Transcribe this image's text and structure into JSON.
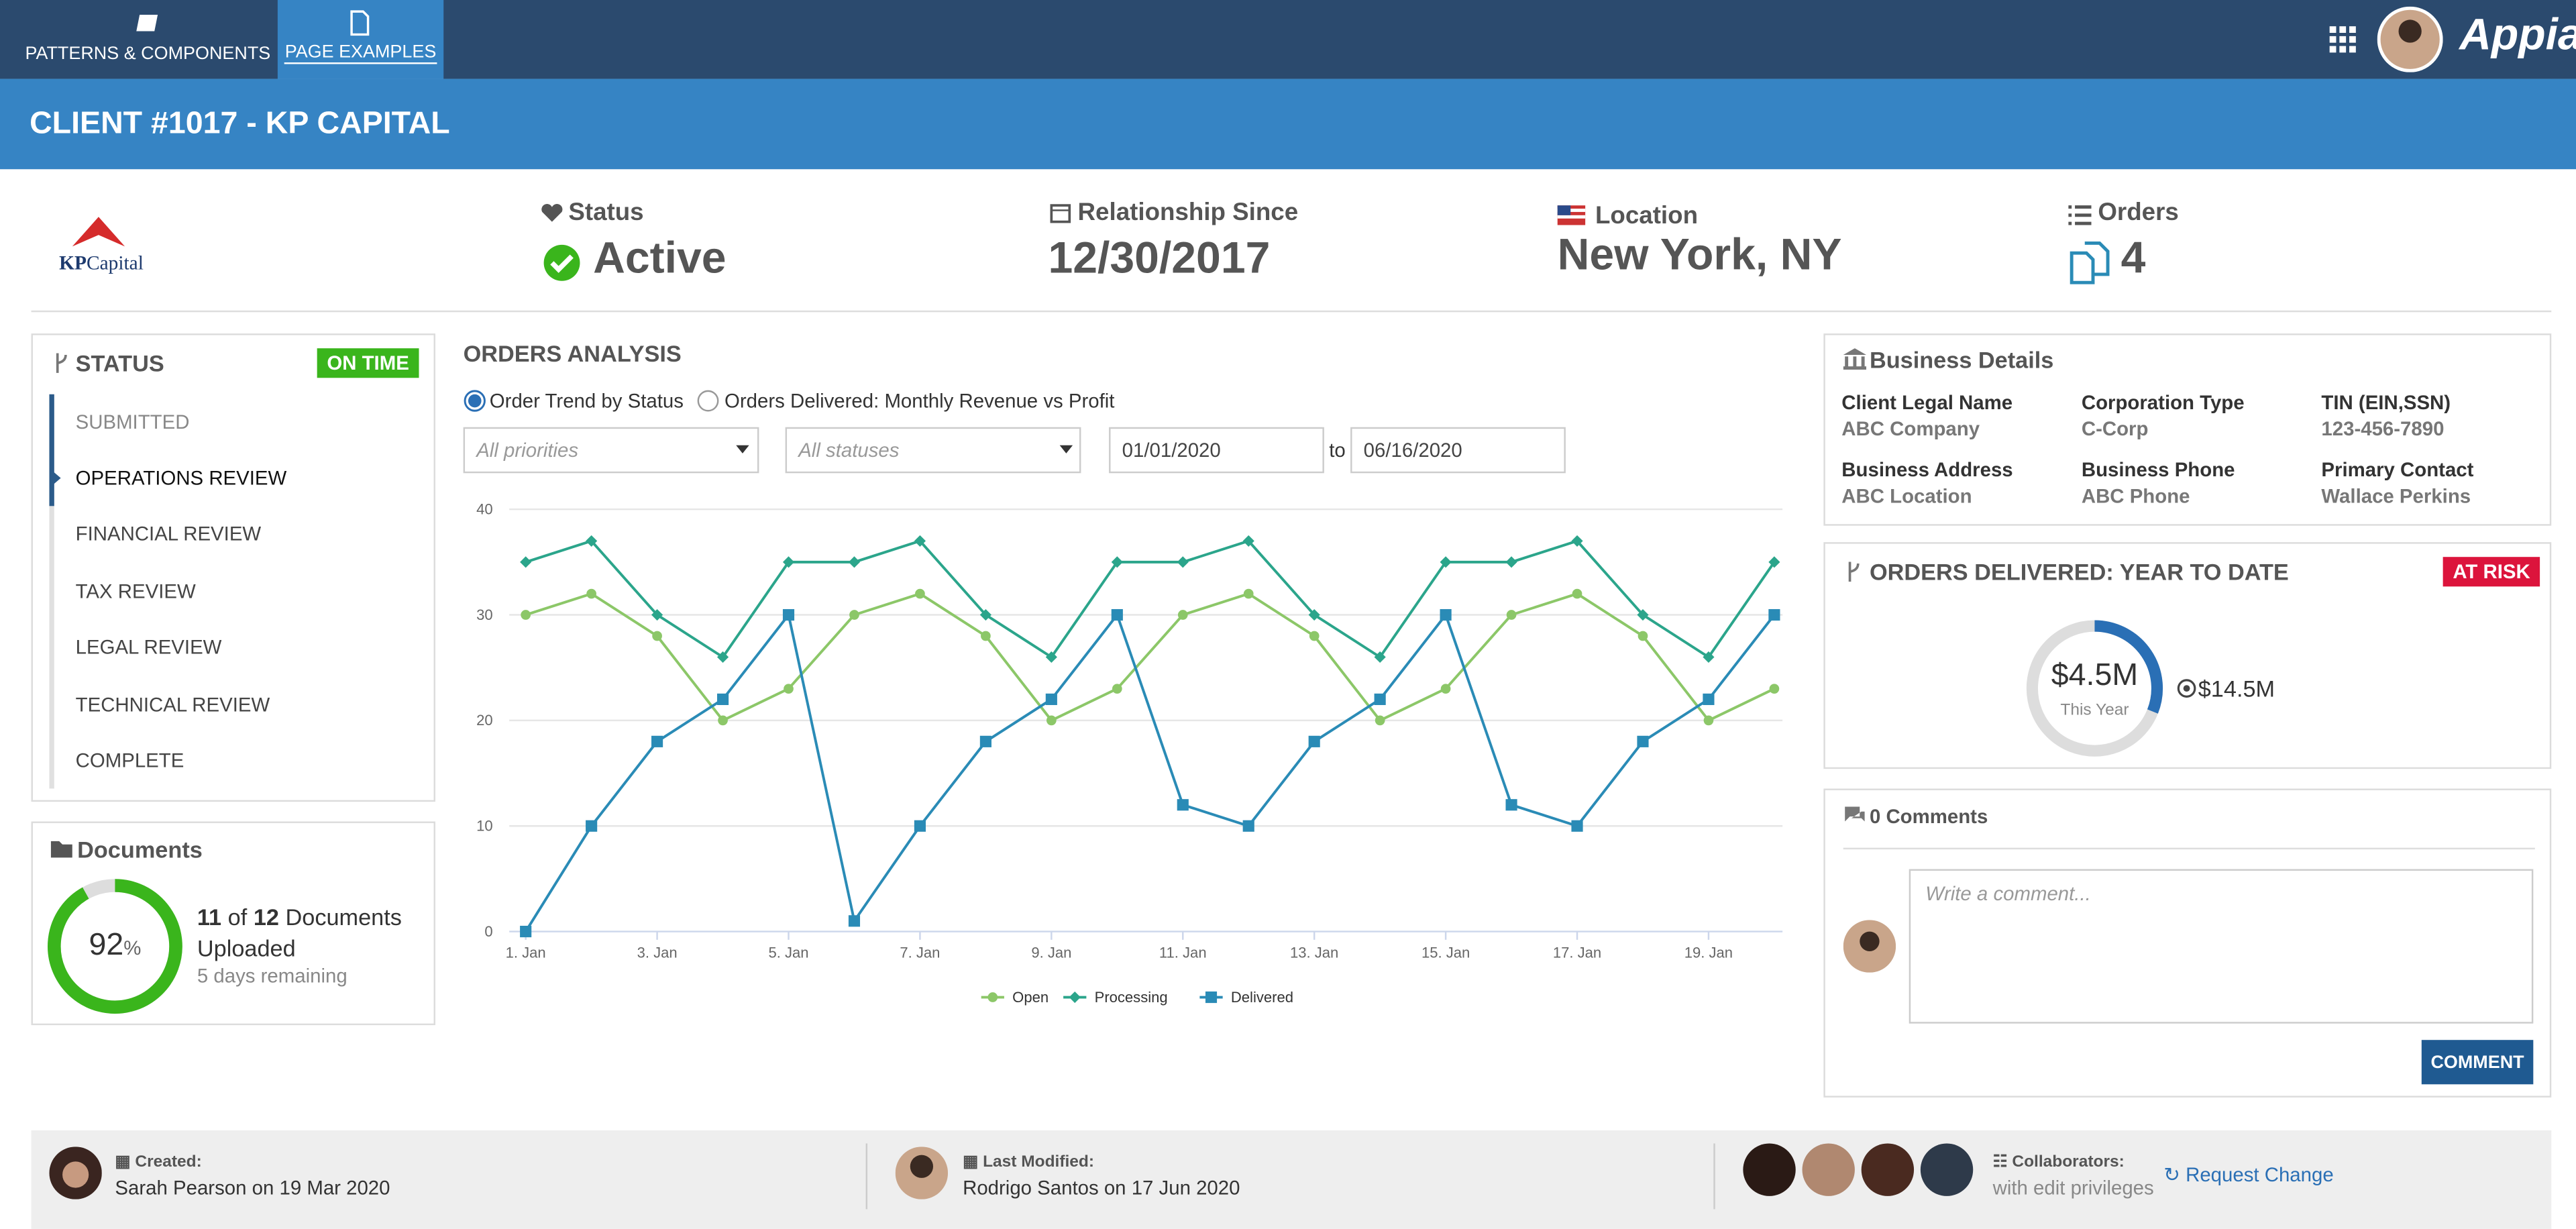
{
  "nav": {
    "tabs": [
      "PATTERNS & COMPONENTS",
      "PAGE EXAMPLES"
    ],
    "brand": "Appian"
  },
  "header": {
    "title": "CLIENT #1017 - KP CAPITAL"
  },
  "summary": {
    "logo_bold": "KP",
    "logo_rest": "Capital",
    "status_label": "Status",
    "status": "Active",
    "relationship_label": "Relationship Since",
    "relationship": "12/30/2017",
    "location_label": "Location",
    "location": "New York, NY",
    "orders_label": "Orders",
    "orders": 4
  },
  "status_panel": {
    "title": "STATUS",
    "badge": "ON TIME",
    "steps": [
      "SUBMITTED",
      "OPERATIONS REVIEW",
      "FINANCIAL REVIEW",
      "TAX REVIEW",
      "LEGAL REVIEW",
      "TECHNICAL REVIEW",
      "COMPLETE"
    ]
  },
  "documents": {
    "title": "Documents",
    "percent": 92,
    "percent_unit": "%",
    "uploaded": 11,
    "of": "of",
    "total": 12,
    "uploaded_text": "Documents Uploaded",
    "remaining": "5 days remaining"
  },
  "orders_analysis": {
    "title": "ORDERS ANALYSIS",
    "options": [
      "Order Trend by Status",
      "Orders Delivered: Monthly Revenue vs Profit"
    ],
    "priority": "All priorities",
    "status": "All statuses",
    "from": "01/01/2020",
    "to_label": "to",
    "to": "06/16/2020"
  },
  "chart_data": {
    "type": "line",
    "categories": [
      "1. Jan",
      null,
      "3. Jan",
      null,
      "5. Jan",
      null,
      "7. Jan",
      null,
      "9. Jan",
      null,
      "11. Jan",
      null,
      "13. Jan",
      null,
      "15. Jan",
      null,
      "17. Jan",
      null,
      "19. Jan",
      null
    ],
    "series": [
      {
        "name": "Open",
        "color": "#8cc768",
        "marker": "circle",
        "values": [
          30,
          32,
          28,
          20,
          23,
          30,
          32,
          28,
          20,
          23,
          30,
          32,
          28,
          20,
          23,
          30,
          32,
          28,
          20,
          23
        ]
      },
      {
        "name": "Processing",
        "color": "#2ba58b",
        "marker": "diamond",
        "values": [
          35,
          37,
          30,
          26,
          35,
          35,
          37,
          30,
          26,
          35,
          35,
          37,
          30,
          26,
          35,
          35,
          37,
          30,
          26,
          35
        ]
      },
      {
        "name": "Delivered",
        "color": "#2a8bb6",
        "marker": "square",
        "values": [
          0,
          10,
          18,
          22,
          30,
          1,
          10,
          18,
          22,
          30,
          12,
          10,
          18,
          22,
          30,
          12,
          10,
          18,
          22,
          30
        ]
      }
    ],
    "ylim": [
      0,
      40
    ],
    "yticks": [
      0,
      10,
      20,
      30,
      40
    ],
    "grid": true,
    "legend": "bottom"
  },
  "business_details": {
    "title": "Business Details",
    "fields": [
      {
        "label": "Client Legal Name",
        "value": "ABC Company"
      },
      {
        "label": "Corporation Type",
        "value": "C-Corp"
      },
      {
        "label": "TIN (EIN,SSN)",
        "value": "123-456-7890"
      },
      {
        "label": "Business Address",
        "value": "ABC Location"
      },
      {
        "label": "Business Phone",
        "value": "ABC Phone"
      },
      {
        "label": "Primary Contact",
        "value": "Wallace Perkins"
      }
    ]
  },
  "ytd": {
    "title": "ORDERS DELIVERED: YEAR TO DATE",
    "badge": "AT RISK",
    "delivered": {
      "value": 4.5,
      "label": "$4.5M"
    },
    "caption": "This Year",
    "target": {
      "value": 14.5,
      "label": "$14.5M"
    }
  },
  "comments": {
    "title": "0 Comments",
    "placeholder": "Write a comment...",
    "button": "COMMENT"
  },
  "footer": {
    "created_label": "Created:",
    "created": "Sarah Pearson on 19 Mar 2020",
    "modified_label": "Last Modified:",
    "modified": "Rodrigo Santos on 17 Jun 2020",
    "collaborators_label": "Collaborators:",
    "collaborators_note": "with edit privileges",
    "request": "Request Change"
  }
}
